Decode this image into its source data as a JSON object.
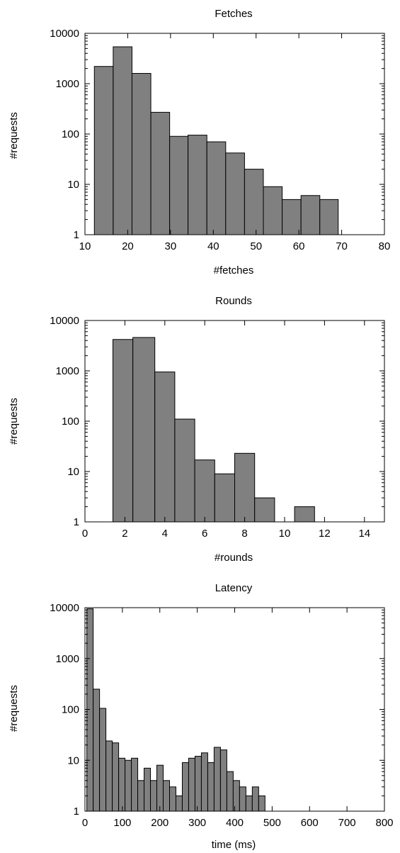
{
  "figure": {
    "panels": [
      {
        "title": "Fetches",
        "xlabel": "#fetches",
        "ylabel": "#requests"
      },
      {
        "title": "Rounds",
        "xlabel": "#rounds",
        "ylabel": "#requests"
      },
      {
        "title": "Latency",
        "xlabel": "time (ms)",
        "ylabel": "#requests"
      }
    ]
  },
  "chart_data": [
    {
      "type": "bar",
      "title": "Fetches",
      "xlabel": "#fetches",
      "ylabel": "#requests",
      "yscale": "log",
      "bar_color": "#808080",
      "xlim": [
        10,
        80
      ],
      "ylim": [
        1,
        10000
      ],
      "xticks": [
        10,
        20,
        30,
        40,
        50,
        60,
        70,
        80
      ],
      "yticks": [
        1,
        10,
        100,
        1000,
        10000
      ],
      "ytick_labels": [
        "1",
        "10",
        "100",
        "1000",
        "10000"
      ],
      "bins": [
        {
          "x0": 12.2,
          "x1": 16.6,
          "value": 2200
        },
        {
          "x0": 16.6,
          "x1": 21.0,
          "value": 5400
        },
        {
          "x0": 21.0,
          "x1": 25.4,
          "value": 1600
        },
        {
          "x0": 25.4,
          "x1": 29.8,
          "value": 270
        },
        {
          "x0": 29.8,
          "x1": 34.1,
          "value": 90
        },
        {
          "x0": 34.1,
          "x1": 38.5,
          "value": 95
        },
        {
          "x0": 38.5,
          "x1": 42.9,
          "value": 70
        },
        {
          "x0": 42.9,
          "x1": 47.3,
          "value": 42
        },
        {
          "x0": 47.3,
          "x1": 51.7,
          "value": 20
        },
        {
          "x0": 51.7,
          "x1": 56.1,
          "value": 9
        },
        {
          "x0": 56.1,
          "x1": 60.5,
          "value": 5
        },
        {
          "x0": 60.5,
          "x1": 64.9,
          "value": 6
        },
        {
          "x0": 64.9,
          "x1": 69.2,
          "value": 5
        }
      ]
    },
    {
      "type": "bar",
      "title": "Rounds",
      "xlabel": "#rounds",
      "ylabel": "#requests",
      "yscale": "log",
      "bar_color": "#808080",
      "xlim": [
        0,
        15
      ],
      "ylim": [
        1,
        10000
      ],
      "xticks": [
        0,
        2,
        4,
        6,
        8,
        10,
        12,
        14
      ],
      "yticks": [
        1,
        10,
        100,
        1000,
        10000
      ],
      "ytick_labels": [
        "1",
        "10",
        "100",
        "1000",
        "10000"
      ],
      "bins": [
        {
          "x0": 1.4,
          "x1": 2.4,
          "value": 4200
        },
        {
          "x0": 2.4,
          "x1": 3.5,
          "value": 4600
        },
        {
          "x0": 3.5,
          "x1": 4.5,
          "value": 950
        },
        {
          "x0": 4.5,
          "x1": 5.5,
          "value": 110
        },
        {
          "x0": 5.5,
          "x1": 6.5,
          "value": 17
        },
        {
          "x0": 6.5,
          "x1": 7.5,
          "value": 9
        },
        {
          "x0": 7.5,
          "x1": 8.5,
          "value": 23
        },
        {
          "x0": 8.5,
          "x1": 9.5,
          "value": 3
        },
        {
          "x0": 9.5,
          "x1": 10.5,
          "value": 1
        },
        {
          "x0": 10.5,
          "x1": 11.5,
          "value": 2
        }
      ]
    },
    {
      "type": "bar",
      "title": "Latency",
      "xlabel": "time (ms)",
      "ylabel": "#requests",
      "yscale": "log",
      "bar_color": "#808080",
      "xlim": [
        0,
        800
      ],
      "ylim": [
        1,
        10000
      ],
      "xticks": [
        0,
        100,
        200,
        300,
        400,
        500,
        600,
        700,
        800
      ],
      "yticks": [
        1,
        10,
        100,
        1000,
        10000
      ],
      "ytick_labels": [
        "1",
        "10",
        "100",
        "1000",
        "10000"
      ],
      "bins": [
        {
          "x0": 5,
          "x1": 22,
          "value": 9500
        },
        {
          "x0": 22,
          "x1": 39,
          "value": 250
        },
        {
          "x0": 39,
          "x1": 56,
          "value": 105
        },
        {
          "x0": 56,
          "x1": 73,
          "value": 24
        },
        {
          "x0": 73,
          "x1": 90,
          "value": 22
        },
        {
          "x0": 90,
          "x1": 107,
          "value": 11
        },
        {
          "x0": 107,
          "x1": 124,
          "value": 10
        },
        {
          "x0": 124,
          "x1": 141,
          "value": 11
        },
        {
          "x0": 141,
          "x1": 158,
          "value": 4
        },
        {
          "x0": 158,
          "x1": 175,
          "value": 7
        },
        {
          "x0": 175,
          "x1": 192,
          "value": 4
        },
        {
          "x0": 192,
          "x1": 209,
          "value": 8
        },
        {
          "x0": 209,
          "x1": 226,
          "value": 4
        },
        {
          "x0": 226,
          "x1": 243,
          "value": 3
        },
        {
          "x0": 243,
          "x1": 260,
          "value": 2
        },
        {
          "x0": 260,
          "x1": 277,
          "value": 9
        },
        {
          "x0": 277,
          "x1": 294,
          "value": 11
        },
        {
          "x0": 294,
          "x1": 311,
          "value": 12
        },
        {
          "x0": 311,
          "x1": 328,
          "value": 14
        },
        {
          "x0": 328,
          "x1": 345,
          "value": 9
        },
        {
          "x0": 345,
          "x1": 362,
          "value": 18
        },
        {
          "x0": 362,
          "x1": 379,
          "value": 16
        },
        {
          "x0": 379,
          "x1": 396,
          "value": 6
        },
        {
          "x0": 396,
          "x1": 413,
          "value": 4
        },
        {
          "x0": 413,
          "x1": 430,
          "value": 3
        },
        {
          "x0": 430,
          "x1": 447,
          "value": 2
        },
        {
          "x0": 447,
          "x1": 464,
          "value": 3
        },
        {
          "x0": 464,
          "x1": 481,
          "value": 2
        }
      ]
    }
  ]
}
